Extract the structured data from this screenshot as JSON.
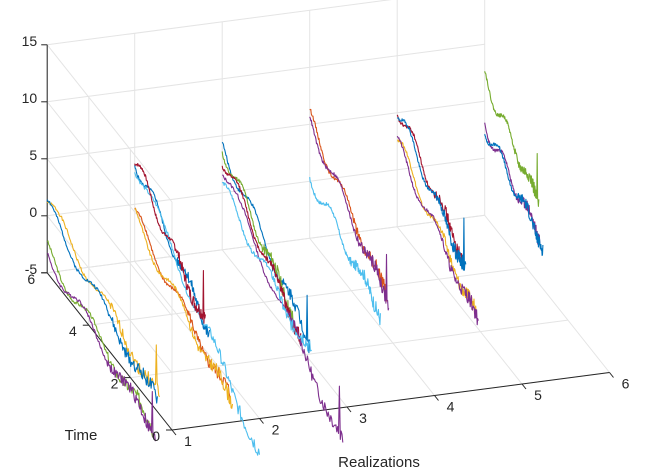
{
  "chart_data": {
    "type": "line",
    "view": "3d",
    "xlabel": "Realizations",
    "ylabel": "Time",
    "zlabel": "",
    "xlim": [
      1,
      6
    ],
    "ylim": [
      0,
      6
    ],
    "zlim": [
      -5,
      15
    ],
    "x_ticks": [
      "1",
      "2",
      "3",
      "4",
      "5",
      "6"
    ],
    "y_ticks": [
      "0",
      "2",
      "4",
      "6"
    ],
    "z_ticks": [
      "-5",
      "0",
      "5",
      "10",
      "15"
    ],
    "grid": true,
    "series": [
      {
        "realization": 1,
        "color": "#edb120",
        "start_z": 1.2,
        "end_z": -3.6,
        "time_end": 0.6
      },
      {
        "realization": 1,
        "color": "#0072bd",
        "start_z": 0.7,
        "end_z": -4.2,
        "time_end": 0.7
      },
      {
        "realization": 1,
        "color": "#77ac30",
        "start_z": -3.0,
        "end_z": -7.0,
        "time_end": 0.9
      },
      {
        "realization": 1,
        "color": "#7e2f8e",
        "start_z": -3.3,
        "end_z": -7.4,
        "time_end": 0.8
      },
      {
        "realization": 2,
        "color": "#0072bd",
        "start_z": 4.0,
        "end_z": -3.0,
        "time_end": 2.4
      },
      {
        "realization": 2,
        "color": "#4dbeee",
        "start_z": 3.6,
        "end_z": -8.0,
        "time_end": 0.0
      },
      {
        "realization": 2,
        "color": "#a2142f",
        "start_z": 3.8,
        "end_z": -2.6,
        "time_end": 2.6
      },
      {
        "realization": 2,
        "color": "#d95319",
        "start_z": -1.0,
        "end_z": -6.5,
        "time_end": 1.4
      },
      {
        "realization": 2,
        "color": "#edb120",
        "start_z": -1.2,
        "end_z": -6.8,
        "time_end": 1.3
      },
      {
        "realization": 3,
        "color": "#0072bd",
        "start_z": 4.2,
        "end_z": -3.5,
        "time_end": 1.8
      },
      {
        "realization": 3,
        "color": "#77ac30",
        "start_z": 4.0,
        "end_z": -2.8,
        "time_end": 2.6
      },
      {
        "realization": 3,
        "color": "#a2142f",
        "start_z": 3.2,
        "end_z": -4.0,
        "time_end": 2.2
      },
      {
        "realization": 3,
        "color": "#7e2f8e",
        "start_z": 2.0,
        "end_z": -8.5,
        "time_end": 0.2
      },
      {
        "realization": 3,
        "color": "#4dbeee",
        "start_z": 0.5,
        "end_z": -4.5,
        "time_end": 1.7
      },
      {
        "realization": 4,
        "color": "#d95319",
        "start_z": 5.5,
        "end_z": -1.5,
        "time_end": 2.3
      },
      {
        "realization": 4,
        "color": "#7e2f8e",
        "start_z": 5.2,
        "end_z": -2.0,
        "time_end": 2.2
      },
      {
        "realization": 4,
        "color": "#4dbeee",
        "start_z": 0.5,
        "end_z": -3.8,
        "time_end": 2.6
      },
      {
        "realization": 5,
        "color": "#a2142f",
        "start_z": 5.6,
        "end_z": -0.5,
        "time_end": 2.8
      },
      {
        "realization": 5,
        "color": "#0072bd",
        "start_z": 5.2,
        "end_z": -1.2,
        "time_end": 2.7
      },
      {
        "realization": 5,
        "color": "#edb120",
        "start_z": 2.5,
        "end_z": -4.0,
        "time_end": 2.2
      },
      {
        "realization": 5,
        "color": "#7e2f8e",
        "start_z": 2.2,
        "end_z": -4.5,
        "time_end": 2.1
      },
      {
        "realization": 6,
        "color": "#77ac30",
        "start_z": 7.0,
        "end_z": 2.0,
        "time_end": 3.4
      },
      {
        "realization": 6,
        "color": "#7e2f8e",
        "start_z": 3.0,
        "end_z": -1.0,
        "time_end": 3.3
      },
      {
        "realization": 6,
        "color": "#0072bd",
        "start_z": 2.8,
        "end_z": -1.2,
        "time_end": 3.2
      }
    ]
  }
}
